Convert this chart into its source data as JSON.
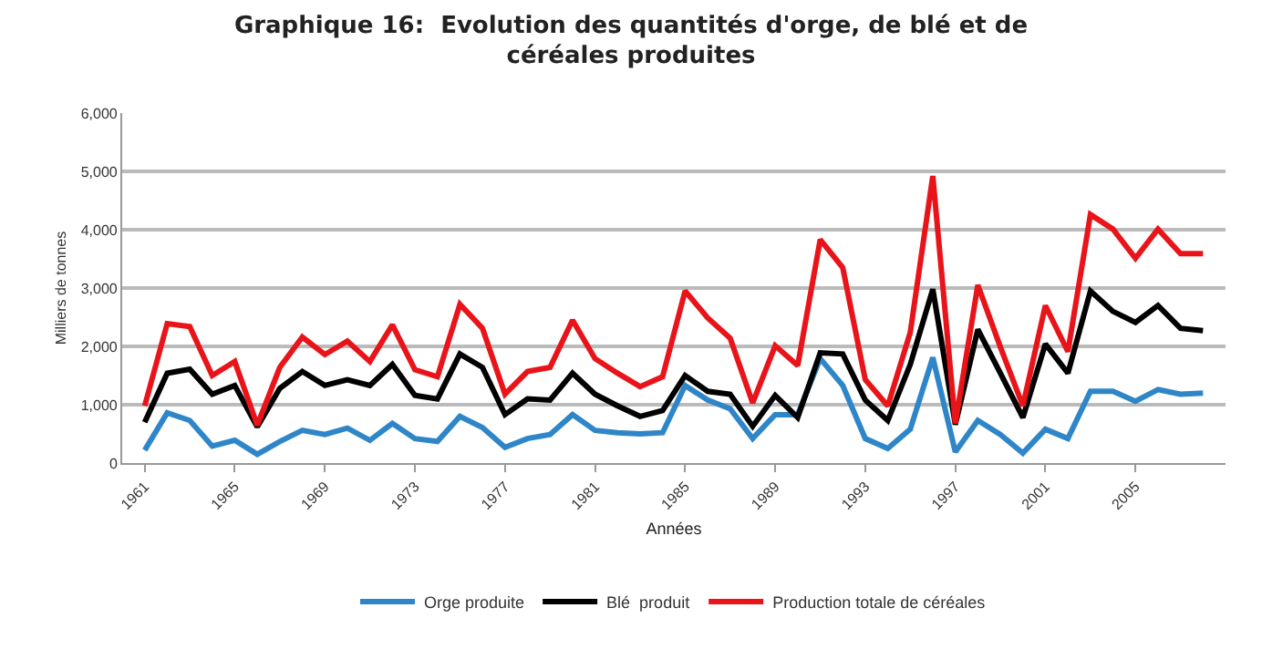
{
  "chart_data": {
    "type": "line",
    "title": "Graphique 16:  Evolution des quantités d'orge, de blé et de céréales produites",
    "xlabel": "Années",
    "ylabel": "Milliers de tonnes",
    "x": [
      1961,
      1962,
      1963,
      1964,
      1965,
      1966,
      1967,
      1968,
      1969,
      1970,
      1971,
      1972,
      1973,
      1974,
      1975,
      1976,
      1977,
      1978,
      1979,
      1980,
      1981,
      1982,
      1983,
      1984,
      1985,
      1986,
      1987,
      1988,
      1989,
      1990,
      1991,
      1992,
      1993,
      1994,
      1995,
      1996,
      1997,
      1998,
      1999,
      2000,
      2001,
      2002,
      2003,
      2004,
      2005,
      2006,
      2007,
      2008
    ],
    "series": [
      {
        "name": "Orge produite",
        "color": "#2e86c8",
        "values": [
          220,
          860,
          730,
          290,
          390,
          150,
          370,
          560,
          490,
          600,
          390,
          680,
          420,
          370,
          800,
          610,
          270,
          420,
          490,
          830,
          560,
          520,
          500,
          520,
          1330,
          1080,
          930,
          420,
          830,
          830,
          1790,
          1330,
          420,
          250,
          580,
          1810,
          190,
          730,
          490,
          170,
          580,
          420,
          1230,
          1230,
          1060,
          1260,
          1180,
          1200
        ]
      },
      {
        "name": "Blé  produit",
        "color": "#000000",
        "values": [
          700,
          1540,
          1610,
          1180,
          1330,
          620,
          1280,
          1570,
          1330,
          1430,
          1330,
          1690,
          1160,
          1100,
          1870,
          1640,
          830,
          1100,
          1080,
          1540,
          1180,
          980,
          800,
          900,
          1500,
          1230,
          1180,
          630,
          1160,
          780,
          1890,
          1870,
          1080,
          730,
          1690,
          2980,
          660,
          2290,
          1540,
          780,
          2040,
          1540,
          2950,
          2600,
          2410,
          2700,
          2310,
          2270
        ]
      },
      {
        "name": "Production totale de céréales",
        "color": "#e8141a",
        "values": [
          980,
          2390,
          2340,
          1500,
          1740,
          650,
          1640,
          2160,
          1860,
          2090,
          1740,
          2370,
          1600,
          1480,
          2720,
          2310,
          1180,
          1570,
          1640,
          2450,
          1790,
          1540,
          1310,
          1480,
          2950,
          2490,
          2140,
          1030,
          2010,
          1670,
          3830,
          3350,
          1430,
          980,
          2240,
          4920,
          680,
          3050,
          1990,
          980,
          2700,
          1910,
          4260,
          4010,
          3510,
          4010,
          3590,
          3590
        ]
      }
    ],
    "xlim": [
      1960,
      2009
    ],
    "xticks": [
      1961,
      1965,
      1969,
      1973,
      1977,
      1981,
      1985,
      1989,
      1993,
      1997,
      2001,
      2005
    ],
    "ylim": [
      0,
      6000
    ],
    "yticks": [
      0,
      {
        "value": 1000,
        "label": "1,000"
      },
      {
        "value": 2000,
        "label": "2,000"
      },
      {
        "value": 3000,
        "label": "3,000"
      },
      {
        "value": 4000,
        "label": "4,000"
      },
      {
        "value": 5000,
        "label": "5,000"
      },
      {
        "value": 6000,
        "label": "6,000"
      }
    ],
    "grid": "y",
    "legend": "bottom",
    "marker": "none",
    "line_style": "solid"
  }
}
